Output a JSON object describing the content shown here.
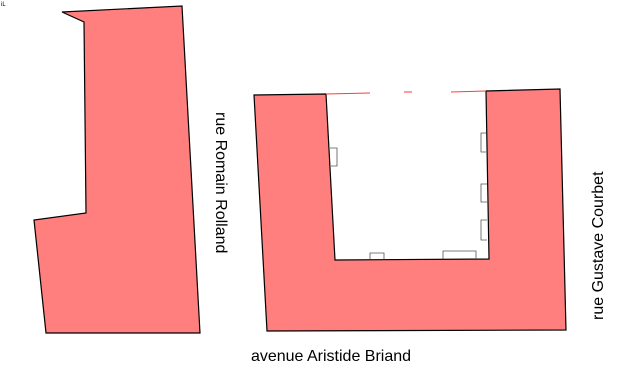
{
  "map": {
    "streets": {
      "romain_rolland": "rue Romain Rolland",
      "gustave_courbet": "rue Gustave Courbet",
      "aristide_briand": "avenue Aristide Briand"
    },
    "corner_mark": "iL",
    "colors": {
      "building_fill": "#ff7f7f",
      "outline": "#000000",
      "courtyard_edge": "#ff3b3b"
    }
  }
}
